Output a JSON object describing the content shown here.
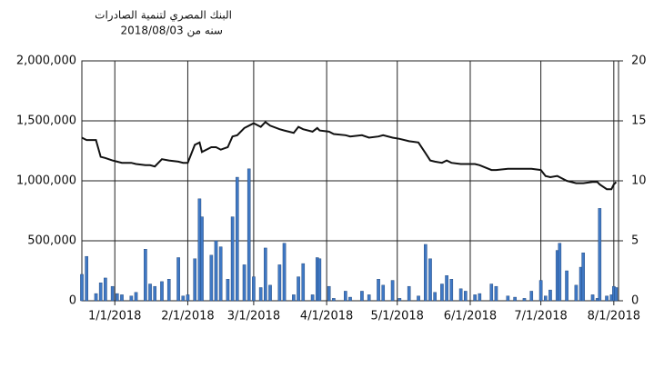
{
  "chart_data": {
    "type": "combo",
    "title": "البنك المصري لتنمية الصادرات",
    "subtitle": "سنه من  2018/08/03",
    "x": [
      "2017-12-18",
      "2017-12-20",
      "2017-12-24",
      "2017-12-26",
      "2017-12-28",
      "2017-12-31",
      "2018-01-02",
      "2018-01-04",
      "2018-01-08",
      "2018-01-10",
      "2018-01-14",
      "2018-01-16",
      "2018-01-18",
      "2018-01-21",
      "2018-01-24",
      "2018-01-28",
      "2018-01-30",
      "2018-02-01",
      "2018-02-04",
      "2018-02-06",
      "2018-02-07",
      "2018-02-11",
      "2018-02-13",
      "2018-02-15",
      "2018-02-18",
      "2018-02-20",
      "2018-02-22",
      "2018-02-25",
      "2018-02-27",
      "2018-03-01",
      "2018-03-04",
      "2018-03-06",
      "2018-03-08",
      "2018-03-12",
      "2018-03-14",
      "2018-03-18",
      "2018-03-20",
      "2018-03-22",
      "2018-03-26",
      "2018-03-28",
      "2018-03-29",
      "2018-04-02",
      "2018-04-04",
      "2018-04-09",
      "2018-04-11",
      "2018-04-16",
      "2018-04-19",
      "2018-04-23",
      "2018-04-25",
      "2018-04-29",
      "2018-05-02",
      "2018-05-06",
      "2018-05-10",
      "2018-05-13",
      "2018-05-15",
      "2018-05-17",
      "2018-05-20",
      "2018-05-22",
      "2018-05-24",
      "2018-05-28",
      "2018-05-30",
      "2018-06-03",
      "2018-06-05",
      "2018-06-10",
      "2018-06-12",
      "2018-06-17",
      "2018-06-20",
      "2018-06-24",
      "2018-06-27",
      "2018-07-01",
      "2018-07-03",
      "2018-07-05",
      "2018-07-08",
      "2018-07-09",
      "2018-07-12",
      "2018-07-16",
      "2018-07-18",
      "2018-07-19",
      "2018-07-23",
      "2018-07-25",
      "2018-07-26",
      "2018-07-29",
      "2018-07-31",
      "2018-08-01",
      "2018-08-02"
    ],
    "series": [
      {
        "type": "bar",
        "axis": "y",
        "color": "#3f78c4",
        "values": [
          220000,
          370000,
          60000,
          150000,
          190000,
          120000,
          60000,
          50000,
          40000,
          70000,
          430000,
          140000,
          120000,
          160000,
          180000,
          360000,
          40000,
          50000,
          350000,
          850000,
          700000,
          380000,
          500000,
          450000,
          180000,
          700000,
          1030000,
          300000,
          1100000,
          200000,
          110000,
          440000,
          130000,
          300000,
          480000,
          50000,
          200000,
          310000,
          50000,
          360000,
          350000,
          120000,
          20000,
          80000,
          30000,
          80000,
          50000,
          180000,
          130000,
          170000,
          20000,
          120000,
          40000,
          470000,
          350000,
          70000,
          140000,
          210000,
          180000,
          100000,
          80000,
          50000,
          60000,
          140000,
          120000,
          40000,
          30000,
          20000,
          80000,
          170000,
          40000,
          90000,
          420000,
          480000,
          250000,
          130000,
          280000,
          400000,
          50000,
          20000,
          770000,
          40000,
          50000,
          120000,
          110000
        ]
      },
      {
        "type": "line",
        "axis": "y2",
        "color": "#111111",
        "values": [
          13.6,
          13.4,
          13.4,
          12.0,
          11.9,
          11.7,
          11.6,
          11.5,
          11.5,
          11.4,
          11.3,
          11.3,
          11.2,
          11.8,
          11.7,
          11.6,
          11.5,
          11.5,
          13.0,
          13.2,
          12.4,
          12.8,
          12.8,
          12.6,
          12.8,
          13.7,
          13.8,
          14.4,
          14.6,
          14.8,
          14.5,
          14.9,
          14.6,
          14.3,
          14.2,
          14.0,
          14.5,
          14.3,
          14.1,
          14.4,
          14.2,
          14.1,
          13.9,
          13.8,
          13.7,
          13.8,
          13.6,
          13.7,
          13.8,
          13.6,
          13.5,
          13.3,
          13.2,
          12.3,
          11.7,
          11.6,
          11.5,
          11.7,
          11.5,
          11.4,
          11.4,
          11.4,
          11.3,
          10.9,
          10.9,
          11.0,
          11.0,
          11.0,
          11.0,
          10.9,
          10.4,
          10.3,
          10.4,
          10.3,
          10.0,
          9.8,
          9.8,
          9.8,
          9.9,
          9.9,
          9.7,
          9.3,
          9.3,
          9.7,
          9.9
        ]
      }
    ],
    "xlim": [
      "2017-12-18",
      "2018-08-03"
    ],
    "xticks": [
      {
        "value": "2018-01-01",
        "label": "1/1/2018"
      },
      {
        "value": "2018-02-01",
        "label": "2/1/2018"
      },
      {
        "value": "2018-03-01",
        "label": "3/1/2018"
      },
      {
        "value": "2018-04-01",
        "label": "4/1/2018"
      },
      {
        "value": "2018-05-01",
        "label": "5/1/2018"
      },
      {
        "value": "2018-06-01",
        "label": "6/1/2018"
      },
      {
        "value": "2018-07-01",
        "label": "7/1/2018"
      },
      {
        "value": "2018-08-01",
        "label": "8/1/2018"
      }
    ],
    "ylim": [
      0,
      2000000
    ],
    "yticks": [
      0,
      {
        "value": 500000,
        "label": "500,000"
      },
      {
        "value": 1000000,
        "label": "1,000,000"
      },
      {
        "value": 1500000,
        "label": "1,500,000"
      },
      {
        "value": 2000000,
        "label": "2,000,000"
      }
    ],
    "y2lim": [
      0,
      20
    ],
    "y2ticks": [
      0,
      5,
      10,
      15,
      20
    ],
    "grid": true
  }
}
